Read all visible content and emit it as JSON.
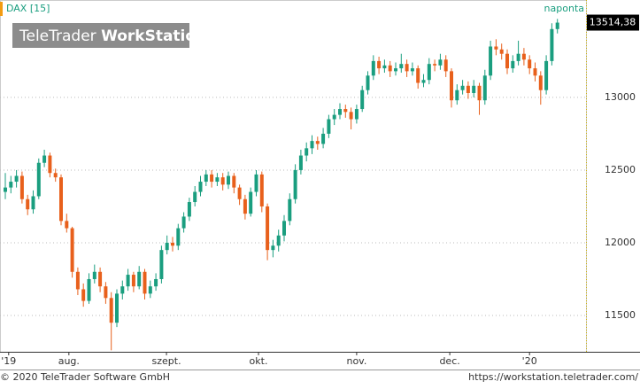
{
  "chart_data": {
    "type": "candlestick",
    "title": "DAX [15]",
    "logo": [
      "TeleTrader ",
      "WorkStation"
    ],
    "interval": "naponta",
    "last_price_label": "13514,38",
    "footer": {
      "copyright": "© 2020 TeleTrader Software GmbH",
      "url": "https://workstation.teletrader.com/"
    },
    "colors": {
      "up": "#1a9e7f",
      "down": "#e8601c"
    },
    "ylim": [
      11250,
      13670
    ],
    "yticks": [
      11500,
      12000,
      12500,
      13000
    ],
    "grid": true,
    "xticks": [
      {
        "value": 0.6,
        "label": "'19"
      },
      {
        "value": 11.4,
        "label": "aug."
      },
      {
        "value": 28.9,
        "label": "szept."
      },
      {
        "value": 45.4,
        "label": "okt."
      },
      {
        "value": 63,
        "label": "nov."
      },
      {
        "value": 79.7,
        "label": "dec."
      },
      {
        "value": 94,
        "label": "'20"
      }
    ],
    "candles": [
      [
        12350,
        12480,
        12300,
        12380
      ],
      [
        12380,
        12460,
        12340,
        12420
      ],
      [
        12420,
        12500,
        12380,
        12460
      ],
      [
        12460,
        12490,
        12270,
        12300
      ],
      [
        12300,
        12330,
        12190,
        12230
      ],
      [
        12230,
        12360,
        12200,
        12320
      ],
      [
        12320,
        12580,
        12300,
        12550
      ],
      [
        12550,
        12640,
        12520,
        12600
      ],
      [
        12600,
        12620,
        12450,
        12480
      ],
      [
        12480,
        12510,
        12420,
        12450
      ],
      [
        12450,
        12470,
        12120,
        12150
      ],
      [
        12150,
        12200,
        12070,
        12100
      ],
      [
        12100,
        12110,
        11760,
        11800
      ],
      [
        11800,
        11830,
        11640,
        11680
      ],
      [
        11680,
        11720,
        11560,
        11600
      ],
      [
        11600,
        11790,
        11580,
        11750
      ],
      [
        11750,
        11850,
        11720,
        11800
      ],
      [
        11800,
        11830,
        11660,
        11700
      ],
      [
        11700,
        11730,
        11580,
        11620
      ],
      [
        11620,
        11660,
        11260,
        11450
      ],
      [
        11450,
        11680,
        11420,
        11650
      ],
      [
        11650,
        11740,
        11610,
        11700
      ],
      [
        11700,
        11820,
        11670,
        11780
      ],
      [
        11780,
        11800,
        11660,
        11700
      ],
      [
        11700,
        11840,
        11680,
        11800
      ],
      [
        11800,
        11820,
        11610,
        11650
      ],
      [
        11650,
        11740,
        11620,
        11700
      ],
      [
        11700,
        11790,
        11670,
        11750
      ],
      [
        11750,
        11980,
        11720,
        11950
      ],
      [
        11950,
        12050,
        11920,
        12000
      ],
      [
        12000,
        12040,
        11940,
        11980
      ],
      [
        11980,
        12130,
        11950,
        12100
      ],
      [
        12100,
        12210,
        12070,
        12180
      ],
      [
        12180,
        12310,
        12150,
        12280
      ],
      [
        12280,
        12390,
        12250,
        12350
      ],
      [
        12350,
        12460,
        12320,
        12420
      ],
      [
        12420,
        12500,
        12390,
        12470
      ],
      [
        12470,
        12500,
        12380,
        12420
      ],
      [
        12420,
        12480,
        12390,
        12450
      ],
      [
        12450,
        12480,
        12360,
        12400
      ],
      [
        12400,
        12490,
        12370,
        12460
      ],
      [
        12460,
        12480,
        12340,
        12380
      ],
      [
        12380,
        12400,
        12260,
        12300
      ],
      [
        12300,
        12330,
        12160,
        12200
      ],
      [
        12200,
        12380,
        12180,
        12350
      ],
      [
        12350,
        12500,
        12320,
        12470
      ],
      [
        12470,
        12490,
        12210,
        12250
      ],
      [
        12250,
        12270,
        11880,
        11950
      ],
      [
        11950,
        12020,
        11900,
        11980
      ],
      [
        11980,
        12090,
        11940,
        12050
      ],
      [
        12050,
        12190,
        12010,
        12150
      ],
      [
        12150,
        12340,
        12120,
        12300
      ],
      [
        12300,
        12540,
        12270,
        12500
      ],
      [
        12500,
        12640,
        12470,
        12600
      ],
      [
        12600,
        12690,
        12560,
        12650
      ],
      [
        12650,
        12740,
        12610,
        12700
      ],
      [
        12700,
        12730,
        12640,
        12680
      ],
      [
        12680,
        12790,
        12650,
        12750
      ],
      [
        12750,
        12880,
        12720,
        12850
      ],
      [
        12850,
        12920,
        12810,
        12880
      ],
      [
        12880,
        12960,
        12850,
        12920
      ],
      [
        12920,
        12950,
        12860,
        12900
      ],
      [
        12900,
        12930,
        12780,
        12850
      ],
      [
        12850,
        12950,
        12820,
        12920
      ],
      [
        12920,
        13080,
        12900,
        13050
      ],
      [
        13050,
        13180,
        13020,
        13150
      ],
      [
        13150,
        13290,
        13120,
        13250
      ],
      [
        13250,
        13280,
        13160,
        13200
      ],
      [
        13200,
        13260,
        13170,
        13220
      ],
      [
        13220,
        13250,
        13140,
        13180
      ],
      [
        13180,
        13240,
        13150,
        13200
      ],
      [
        13200,
        13300,
        13170,
        13230
      ],
      [
        13230,
        13260,
        13140,
        13180
      ],
      [
        13180,
        13240,
        13150,
        13200
      ],
      [
        13200,
        13220,
        13060,
        13100
      ],
      [
        13100,
        13160,
        13070,
        13120
      ],
      [
        13120,
        13270,
        13090,
        13230
      ],
      [
        13230,
        13260,
        13180,
        13220
      ],
      [
        13220,
        13300,
        13190,
        13260
      ],
      [
        13260,
        13290,
        13140,
        13180
      ],
      [
        13180,
        13200,
        12930,
        12980
      ],
      [
        12980,
        13090,
        12950,
        13050
      ],
      [
        13050,
        13120,
        13020,
        13080
      ],
      [
        13080,
        13110,
        12990,
        13030
      ],
      [
        13030,
        13120,
        13000,
        13080
      ],
      [
        13080,
        13100,
        12880,
        12980
      ],
      [
        12980,
        13190,
        12950,
        13150
      ],
      [
        13150,
        13390,
        13120,
        13350
      ],
      [
        13350,
        13400,
        13290,
        13330
      ],
      [
        13330,
        13370,
        13260,
        13300
      ],
      [
        13300,
        13330,
        13160,
        13200
      ],
      [
        13200,
        13290,
        13170,
        13250
      ],
      [
        13250,
        13390,
        13220,
        13300
      ],
      [
        13300,
        13340,
        13220,
        13260
      ],
      [
        13260,
        13290,
        13160,
        13200
      ],
      [
        13200,
        13240,
        13110,
        13150
      ],
      [
        13150,
        13180,
        12950,
        13050
      ],
      [
        13050,
        13290,
        13020,
        13250
      ],
      [
        13250,
        13510,
        13220,
        13470
      ],
      [
        13470,
        13540,
        13440,
        13514.38
      ]
    ]
  }
}
